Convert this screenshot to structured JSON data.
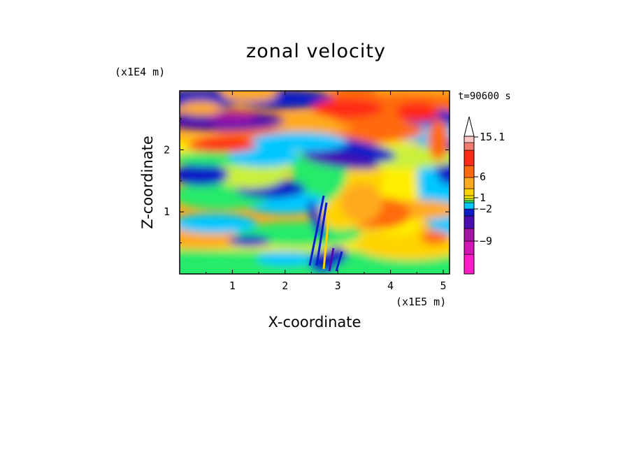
{
  "chart_data": {
    "type": "heatmap",
    "title": "zonal velocity",
    "xlabel": "X-coordinate",
    "ylabel": "Z-coordinate",
    "x_unit": "(x1E5 m)",
    "y_unit": "(x1E4 m)",
    "timestamp": "t=90600 s",
    "xlim": [
      0,
      5.12
    ],
    "ylim": [
      0,
      2.95
    ],
    "x_ticks": [
      1,
      2,
      3,
      4,
      5
    ],
    "y_ticks": [
      1,
      2
    ],
    "colorbar": {
      "levels": [
        -16,
        -12,
        -9,
        -6,
        -4,
        -2,
        -1,
        0,
        1,
        2,
        4,
        6,
        9,
        12,
        15.1,
        20
      ],
      "colors": [
        "#ff1bc5",
        "#d315b5",
        "#a313a6",
        "#4a0db0",
        "#0a1cc6",
        "#00c8ff",
        "#27ea6a",
        "#c9f03a",
        "#ffee00",
        "#ffd300",
        "#ffaa1e",
        "#ff6a10",
        "#ff2a18",
        "#f27a70",
        "#ffc4c4"
      ],
      "labels": [
        {
          "value": 15.1,
          "text": "15.1"
        },
        {
          "value": 6,
          "text": "6"
        },
        {
          "value": 1,
          "text": "1"
        },
        {
          "value": -2,
          "text": "−2"
        },
        {
          "value": -9,
          "text": "−9"
        }
      ],
      "extend": "max"
    }
  }
}
